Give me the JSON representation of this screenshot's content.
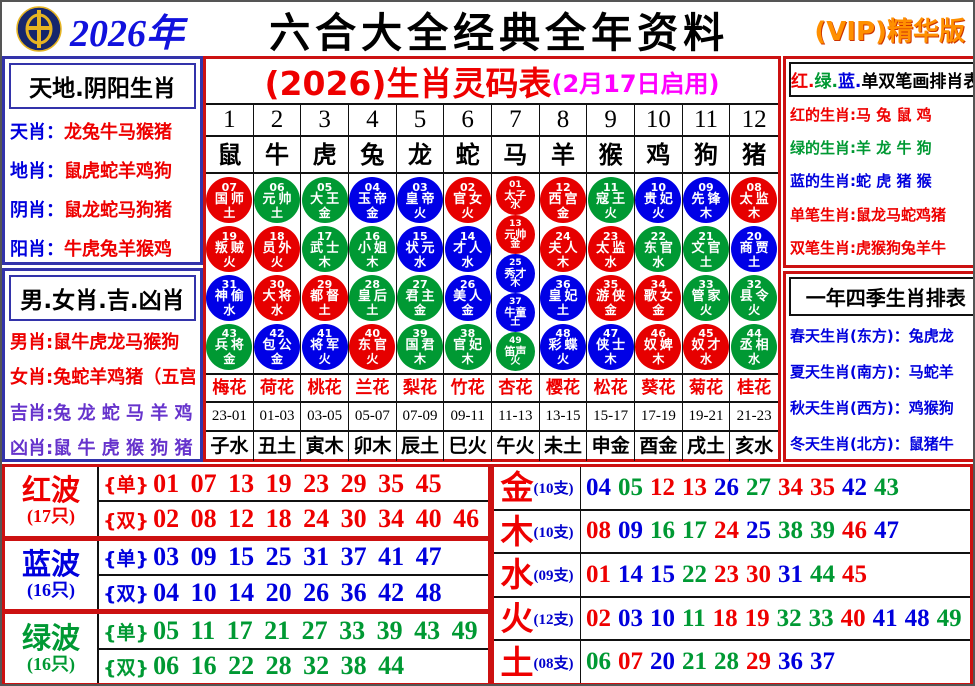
{
  "colors": {
    "red": "#ee0000",
    "green": "#009933",
    "blue": "#0000dd",
    "purple": "#6633cc",
    "magenta": "#ff00ff",
    "navy_border": "#3333aa",
    "red_border": "#cc1111",
    "vip_orange": "#ff9000"
  },
  "header": {
    "logo": "jockey-club-coin-logo",
    "year": "2026年",
    "title": "六合大全经典全年资料",
    "vip": "(VIP)精华版"
  },
  "left_panel": {
    "sky_earth": {
      "title": "天地.阴阳生肖",
      "rows": [
        {
          "label": "天肖",
          "value": "龙兔牛马猴猪"
        },
        {
          "label": "地肖",
          "value": "鼠虎蛇羊鸡狗"
        },
        {
          "label": "阴肖",
          "value": "鼠龙蛇马狗猪"
        },
        {
          "label": "阳肖",
          "value": "牛虎兔羊猴鸡"
        }
      ]
    },
    "male_female": {
      "title": "男.女肖.吉.凶肖",
      "rows": [
        {
          "label": "男肖",
          "value": "鼠牛虎龙马猴狗",
          "color": "red"
        },
        {
          "label": "女肖",
          "value": "兔蛇羊鸡猪（五宫）",
          "color": "red"
        },
        {
          "label": "吉肖",
          "value": "兔 龙 蛇 马 羊 鸡",
          "color": "purple"
        },
        {
          "label": "凶肖",
          "value": "鼠 牛 虎 猴 狗 猪",
          "color": "purple"
        }
      ]
    }
  },
  "code_table": {
    "title": "(2026)生肖灵码表",
    "subtitle": "(2月17日启用)",
    "col_numbers": [
      "1",
      "2",
      "3",
      "4",
      "5",
      "6",
      "7",
      "8",
      "9",
      "10",
      "11",
      "12"
    ],
    "zodiacs": [
      "鼠",
      "牛",
      "虎",
      "兔",
      "龙",
      "蛇",
      "马",
      "羊",
      "猴",
      "鸡",
      "狗",
      "猪"
    ],
    "ball_columns": [
      [
        {
          "num": "07",
          "name": "国师",
          "elem": "土",
          "color": "red"
        },
        {
          "num": "19",
          "name": "叛贼",
          "elem": "火",
          "color": "red"
        },
        {
          "num": "31",
          "name": "神偷",
          "elem": "水",
          "color": "blue"
        },
        {
          "num": "43",
          "name": "兵将",
          "elem": "金",
          "color": "green"
        }
      ],
      [
        {
          "num": "06",
          "name": "元帅",
          "elem": "土",
          "color": "green"
        },
        {
          "num": "18",
          "name": "员外",
          "elem": "火",
          "color": "red"
        },
        {
          "num": "30",
          "name": "大将",
          "elem": "水",
          "color": "red"
        },
        {
          "num": "42",
          "name": "包公",
          "elem": "金",
          "color": "blue"
        }
      ],
      [
        {
          "num": "05",
          "name": "大王",
          "elem": "金",
          "color": "green"
        },
        {
          "num": "17",
          "name": "武士",
          "elem": "木",
          "color": "green"
        },
        {
          "num": "29",
          "name": "都督",
          "elem": "土",
          "color": "red"
        },
        {
          "num": "41",
          "name": "将军",
          "elem": "火",
          "color": "blue"
        }
      ],
      [
        {
          "num": "04",
          "name": "玉帝",
          "elem": "金",
          "color": "blue"
        },
        {
          "num": "16",
          "name": "小姐",
          "elem": "木",
          "color": "green"
        },
        {
          "num": "28",
          "name": "皇后",
          "elem": "土",
          "color": "green"
        },
        {
          "num": "40",
          "name": "东官",
          "elem": "火",
          "color": "red"
        }
      ],
      [
        {
          "num": "03",
          "name": "皇帝",
          "elem": "火",
          "color": "blue"
        },
        {
          "num": "15",
          "name": "状元",
          "elem": "水",
          "color": "blue"
        },
        {
          "num": "27",
          "name": "君主",
          "elem": "金",
          "color": "green"
        },
        {
          "num": "39",
          "name": "国君",
          "elem": "木",
          "color": "green"
        }
      ],
      [
        {
          "num": "02",
          "name": "官女",
          "elem": "火",
          "color": "red"
        },
        {
          "num": "14",
          "name": "才人",
          "elem": "水",
          "color": "blue"
        },
        {
          "num": "26",
          "name": "美人",
          "elem": "金",
          "color": "blue"
        },
        {
          "num": "38",
          "name": "官妃",
          "elem": "木",
          "color": "green"
        }
      ],
      [
        {
          "num": "01",
          "name": "太子",
          "elem": "水",
          "color": "red"
        },
        {
          "num": "13",
          "name": "元帅",
          "elem": "金",
          "color": "red"
        },
        {
          "num": "25",
          "name": "秀才",
          "elem": "木",
          "color": "blue"
        },
        {
          "num": "37",
          "name": "牛童",
          "elem": "土",
          "color": "blue"
        },
        {
          "num": "49",
          "name": "笛声",
          "elem": "火",
          "color": "green"
        }
      ],
      [
        {
          "num": "12",
          "name": "西宫",
          "elem": "金",
          "color": "red"
        },
        {
          "num": "24",
          "name": "夫人",
          "elem": "木",
          "color": "red"
        },
        {
          "num": "36",
          "name": "皇妃",
          "elem": "土",
          "color": "blue"
        },
        {
          "num": "48",
          "name": "彩蝶",
          "elem": "火",
          "color": "blue"
        }
      ],
      [
        {
          "num": "11",
          "name": "寇王",
          "elem": "火",
          "color": "green"
        },
        {
          "num": "23",
          "name": "太监",
          "elem": "水",
          "color": "red"
        },
        {
          "num": "35",
          "name": "游侠",
          "elem": "金",
          "color": "red"
        },
        {
          "num": "47",
          "name": "侠士",
          "elem": "木",
          "color": "blue"
        }
      ],
      [
        {
          "num": "10",
          "name": "贵妃",
          "elem": "火",
          "color": "blue"
        },
        {
          "num": "22",
          "name": "东官",
          "elem": "水",
          "color": "green"
        },
        {
          "num": "34",
          "name": "歌女",
          "elem": "金",
          "color": "red"
        },
        {
          "num": "46",
          "name": "奴婢",
          "elem": "木",
          "color": "red"
        }
      ],
      [
        {
          "num": "09",
          "name": "先锋",
          "elem": "木",
          "color": "blue"
        },
        {
          "num": "21",
          "name": "文官",
          "elem": "土",
          "color": "green"
        },
        {
          "num": "33",
          "name": "管家",
          "elem": "火",
          "color": "green"
        },
        {
          "num": "45",
          "name": "奴才",
          "elem": "水",
          "color": "red"
        }
      ],
      [
        {
          "num": "08",
          "name": "太监",
          "elem": "木",
          "color": "red"
        },
        {
          "num": "20",
          "name": "商贾",
          "elem": "土",
          "color": "blue"
        },
        {
          "num": "32",
          "name": "县令",
          "elem": "火",
          "color": "green"
        },
        {
          "num": "44",
          "name": "丞相",
          "elem": "水",
          "color": "green"
        }
      ]
    ],
    "flowers": [
      "梅花",
      "荷花",
      "桃花",
      "兰花",
      "梨花",
      "竹花",
      "杏花",
      "樱花",
      "松花",
      "葵花",
      "菊花",
      "桂花"
    ],
    "hours": [
      "23-01",
      "01-03",
      "03-05",
      "05-07",
      "07-09",
      "09-11",
      "11-13",
      "13-15",
      "15-17",
      "17-19",
      "19-21",
      "21-23"
    ],
    "branches": [
      "子水",
      "丑土",
      "寅木",
      "卯木",
      "辰土",
      "巳火",
      "午火",
      "未土",
      "申金",
      "酉金",
      "戌土",
      "亥水"
    ]
  },
  "right_panel": {
    "color_stroke": {
      "title": {
        "red": "红.",
        "green": "绿.",
        "blue": "蓝.",
        "rest": "单双笔画排肖表"
      },
      "rows": [
        {
          "label": "红的生肖",
          "value": "马 兔 鼠 鸡",
          "color": "red"
        },
        {
          "label": "绿的生肖",
          "value": "羊 龙 牛 狗",
          "color": "green"
        },
        {
          "label": "蓝的生肖",
          "value": "蛇 虎 猪 猴",
          "color": "blue"
        },
        {
          "label": "单笔生肖",
          "value": "鼠龙马蛇鸡猪",
          "color": "red"
        },
        {
          "label": "双笔生肖",
          "value": "虎猴狗兔羊牛",
          "color": "red"
        }
      ]
    },
    "seasons": {
      "title": "一年四季生肖排表",
      "rows": [
        {
          "label": "春天生肖(东方)",
          "value": "兔虎龙"
        },
        {
          "label": "夏天生肖(南方)",
          "value": "马蛇羊"
        },
        {
          "label": "秋天生肖(西方)",
          "value": "鸡猴狗"
        },
        {
          "label": "冬天生肖(北方)",
          "value": "鼠猪牛"
        }
      ]
    }
  },
  "waves": [
    {
      "name": "红波",
      "count": "(17只)",
      "color": "red",
      "odd_label": "{单}",
      "odd": "01 07 13 19 23 29 35 45",
      "even_label": "{双}",
      "even": "02 08 12 18 24 30 34 40 46"
    },
    {
      "name": "蓝波",
      "count": "(16只)",
      "color": "blue",
      "odd_label": "{单}",
      "odd": "03 09 15 25 31 37 41 47",
      "even_label": "{双}",
      "even": "04 10 14 20 26 36 42 48"
    },
    {
      "name": "绿波",
      "count": "(16只)",
      "color": "green",
      "odd_label": "{单}",
      "odd": "05 11 17 21 27 33 39 43 49",
      "even_label": "{双}",
      "even": "06 16 22 28 32 38 44"
    }
  ],
  "elements": [
    {
      "name": "金",
      "count": "(10支)",
      "numbers": [
        {
          "n": "04",
          "c": "blue"
        },
        {
          "n": "05",
          "c": "green"
        },
        {
          "n": "12",
          "c": "red"
        },
        {
          "n": "13",
          "c": "red"
        },
        {
          "n": "26",
          "c": "blue"
        },
        {
          "n": "27",
          "c": "green"
        },
        {
          "n": "34",
          "c": "red"
        },
        {
          "n": "35",
          "c": "red"
        },
        {
          "n": "42",
          "c": "blue"
        },
        {
          "n": "43",
          "c": "green"
        }
      ]
    },
    {
      "name": "木",
      "count": "(10支)",
      "numbers": [
        {
          "n": "08",
          "c": "red"
        },
        {
          "n": "09",
          "c": "blue"
        },
        {
          "n": "16",
          "c": "green"
        },
        {
          "n": "17",
          "c": "green"
        },
        {
          "n": "24",
          "c": "red"
        },
        {
          "n": "25",
          "c": "blue"
        },
        {
          "n": "38",
          "c": "green"
        },
        {
          "n": "39",
          "c": "green"
        },
        {
          "n": "46",
          "c": "red"
        },
        {
          "n": "47",
          "c": "blue"
        }
      ]
    },
    {
      "name": "水",
      "count": "(09支)",
      "numbers": [
        {
          "n": "01",
          "c": "red"
        },
        {
          "n": "14",
          "c": "blue"
        },
        {
          "n": "15",
          "c": "blue"
        },
        {
          "n": "22",
          "c": "green"
        },
        {
          "n": "23",
          "c": "red"
        },
        {
          "n": "30",
          "c": "red"
        },
        {
          "n": "31",
          "c": "blue"
        },
        {
          "n": "44",
          "c": "green"
        },
        {
          "n": "45",
          "c": "red"
        }
      ]
    },
    {
      "name": "火",
      "count": "(12支)",
      "numbers": [
        {
          "n": "02",
          "c": "red"
        },
        {
          "n": "03",
          "c": "blue"
        },
        {
          "n": "10",
          "c": "blue"
        },
        {
          "n": "11",
          "c": "green"
        },
        {
          "n": "18",
          "c": "red"
        },
        {
          "n": "19",
          "c": "red"
        },
        {
          "n": "32",
          "c": "green"
        },
        {
          "n": "33",
          "c": "green"
        },
        {
          "n": "40",
          "c": "red"
        },
        {
          "n": "41",
          "c": "blue"
        },
        {
          "n": "48",
          "c": "blue"
        },
        {
          "n": "49",
          "c": "green"
        }
      ]
    },
    {
      "name": "土",
      "count": "(08支)",
      "numbers": [
        {
          "n": "06",
          "c": "green"
        },
        {
          "n": "07",
          "c": "red"
        },
        {
          "n": "20",
          "c": "blue"
        },
        {
          "n": "21",
          "c": "green"
        },
        {
          "n": "28",
          "c": "green"
        },
        {
          "n": "29",
          "c": "red"
        },
        {
          "n": "36",
          "c": "blue"
        },
        {
          "n": "37",
          "c": "blue"
        }
      ]
    }
  ]
}
